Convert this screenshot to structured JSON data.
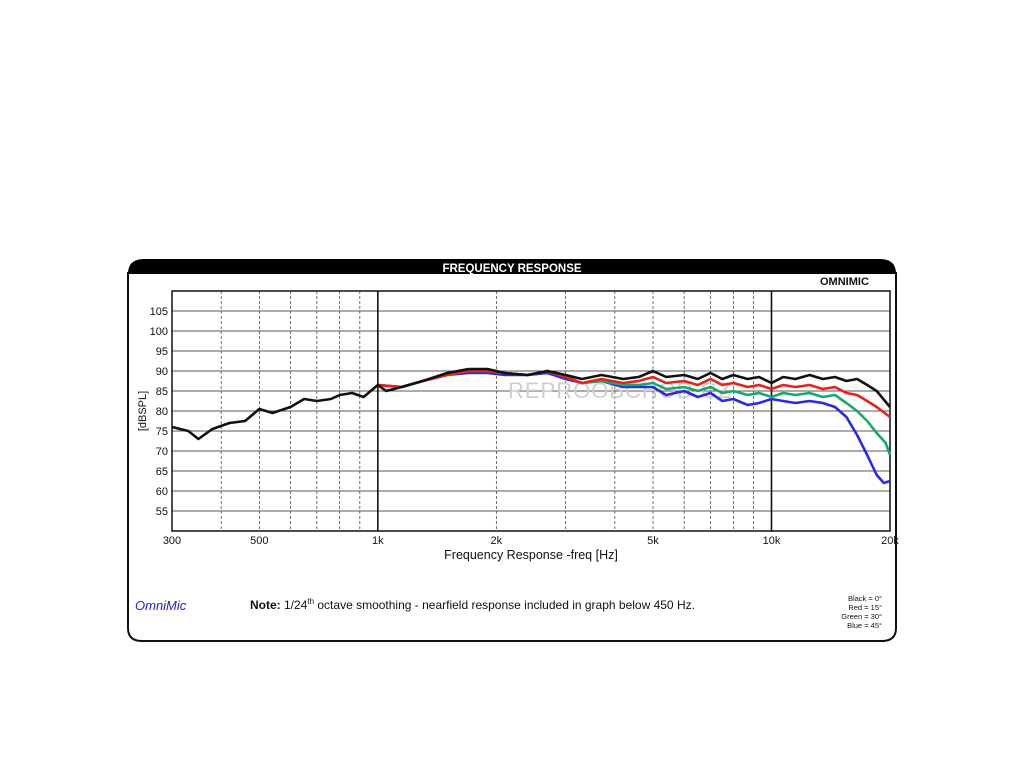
{
  "header": {
    "title": "FREQUENCY RESPONSE",
    "logo": "OMNIMIC"
  },
  "brand": "OmniMic",
  "watermark": "REPROOBCHOD.CZ",
  "note": {
    "bold": "Note:",
    "text_before": " 1/24",
    "superscript": "th",
    "text_after": " octave smoothing - nearfield response included in graph below 450 Hz."
  },
  "legend": [
    "Black = 0°",
    "Red = 15°",
    "Green = 30°",
    "Blue = 45°"
  ],
  "colors": {
    "black": "#111111",
    "red": "#e8211c",
    "green": "#1aa86a",
    "blue": "#2a2ae0",
    "header_bg": "#000000"
  },
  "chart_data": {
    "type": "line",
    "xlabel": "Frequency Response -freq [Hz]",
    "ylabel": "[dBSPL]",
    "xscale": "log",
    "xlim": [
      300,
      20000
    ],
    "ylim": [
      50,
      110
    ],
    "xticks": [
      {
        "value": 300,
        "label": "300"
      },
      {
        "value": 500,
        "label": "500"
      },
      {
        "value": 1000,
        "label": "1k"
      },
      {
        "value": 2000,
        "label": "2k"
      },
      {
        "value": 5000,
        "label": "5k"
      },
      {
        "value": 10000,
        "label": "10k"
      },
      {
        "value": 20000,
        "label": "20k"
      }
    ],
    "yticks": [
      55,
      60,
      65,
      70,
      75,
      80,
      85,
      90,
      95,
      100,
      105
    ],
    "grid": true,
    "series": [
      {
        "name": "Black = 0°",
        "color": "#111111",
        "points": [
          [
            300,
            76
          ],
          [
            330,
            75
          ],
          [
            350,
            73
          ],
          [
            380,
            75.5
          ],
          [
            420,
            77
          ],
          [
            460,
            77.5
          ],
          [
            500,
            80.5
          ],
          [
            540,
            79.5
          ],
          [
            600,
            81
          ],
          [
            650,
            83
          ],
          [
            700,
            82.5
          ],
          [
            760,
            83
          ],
          [
            800,
            84
          ],
          [
            860,
            84.5
          ],
          [
            920,
            83.5
          ],
          [
            1000,
            86.5
          ],
          [
            1050,
            85
          ],
          [
            1150,
            86
          ],
          [
            1300,
            87.5
          ],
          [
            1500,
            89.5
          ],
          [
            1700,
            90.5
          ],
          [
            1900,
            90.5
          ],
          [
            2100,
            89.5
          ],
          [
            2400,
            89
          ],
          [
            2700,
            90
          ],
          [
            3000,
            89
          ],
          [
            3300,
            88
          ],
          [
            3700,
            89
          ],
          [
            4200,
            88
          ],
          [
            4600,
            88.5
          ],
          [
            5000,
            90
          ],
          [
            5400,
            88.5
          ],
          [
            6000,
            89
          ],
          [
            6500,
            88
          ],
          [
            7000,
            89.5
          ],
          [
            7500,
            88
          ],
          [
            8000,
            89
          ],
          [
            8700,
            88
          ],
          [
            9300,
            88.5
          ],
          [
            10000,
            87
          ],
          [
            10700,
            88.5
          ],
          [
            11500,
            88
          ],
          [
            12500,
            89
          ],
          [
            13500,
            88
          ],
          [
            14500,
            88.5
          ],
          [
            15500,
            87.5
          ],
          [
            16500,
            88
          ],
          [
            17500,
            86.5
          ],
          [
            18500,
            85
          ],
          [
            20000,
            81
          ]
        ]
      },
      {
        "name": "Red = 15°",
        "color": "#e8211c",
        "points": [
          [
            1000,
            86.5
          ],
          [
            1150,
            86
          ],
          [
            1300,
            87.5
          ],
          [
            1500,
            89
          ],
          [
            1700,
            90
          ],
          [
            1900,
            90
          ],
          [
            2100,
            89.5
          ],
          [
            2400,
            89
          ],
          [
            2700,
            90
          ],
          [
            3000,
            88.5
          ],
          [
            3300,
            87
          ],
          [
            3700,
            88
          ],
          [
            4200,
            87
          ],
          [
            4600,
            87.5
          ],
          [
            5000,
            88.5
          ],
          [
            5400,
            87
          ],
          [
            6000,
            87.5
          ],
          [
            6500,
            86.5
          ],
          [
            7000,
            88
          ],
          [
            7500,
            86.5
          ],
          [
            8000,
            87
          ],
          [
            8700,
            86
          ],
          [
            9300,
            86.5
          ],
          [
            10000,
            85.5
          ],
          [
            10700,
            86.5
          ],
          [
            11500,
            86
          ],
          [
            12500,
            86.5
          ],
          [
            13500,
            85.5
          ],
          [
            14500,
            86
          ],
          [
            15500,
            84.5
          ],
          [
            16500,
            84
          ],
          [
            17500,
            82.5
          ],
          [
            18500,
            81
          ],
          [
            20000,
            78.5
          ]
        ]
      },
      {
        "name": "Green = 30°",
        "color": "#1aa86a",
        "points": [
          [
            1000,
            86.5
          ],
          [
            1150,
            86
          ],
          [
            1300,
            87.5
          ],
          [
            1500,
            89
          ],
          [
            1700,
            90
          ],
          [
            1900,
            90
          ],
          [
            2100,
            89.5
          ],
          [
            2400,
            89
          ],
          [
            2700,
            90
          ],
          [
            3000,
            88.5
          ],
          [
            3300,
            87
          ],
          [
            3700,
            87.5
          ],
          [
            4200,
            86.5
          ],
          [
            4600,
            86.5
          ],
          [
            5000,
            87
          ],
          [
            5400,
            85.5
          ],
          [
            6000,
            86
          ],
          [
            6500,
            85
          ],
          [
            7000,
            86
          ],
          [
            7500,
            84.5
          ],
          [
            8000,
            85
          ],
          [
            8700,
            84
          ],
          [
            9300,
            84.5
          ],
          [
            10000,
            83.5
          ],
          [
            10700,
            84.5
          ],
          [
            11500,
            84
          ],
          [
            12500,
            84.5
          ],
          [
            13500,
            83.5
          ],
          [
            14500,
            84
          ],
          [
            15500,
            82
          ],
          [
            16500,
            80
          ],
          [
            17500,
            77.5
          ],
          [
            18500,
            74.5
          ],
          [
            19500,
            72
          ],
          [
            20000,
            69
          ]
        ]
      },
      {
        "name": "Blue = 45°",
        "color": "#2a2ae0",
        "points": [
          [
            1000,
            86.5
          ],
          [
            1150,
            86
          ],
          [
            1300,
            87.5
          ],
          [
            1500,
            89
          ],
          [
            1700,
            89.5
          ],
          [
            1900,
            89.5
          ],
          [
            2100,
            89
          ],
          [
            2400,
            89
          ],
          [
            2700,
            89.5
          ],
          [
            3000,
            88
          ],
          [
            3300,
            87
          ],
          [
            3700,
            87.5
          ],
          [
            4200,
            86
          ],
          [
            4600,
            86
          ],
          [
            5000,
            86
          ],
          [
            5400,
            84
          ],
          [
            6000,
            85
          ],
          [
            6500,
            83.5
          ],
          [
            7000,
            84.5
          ],
          [
            7500,
            82.5
          ],
          [
            8000,
            83
          ],
          [
            8700,
            81.5
          ],
          [
            9300,
            82
          ],
          [
            10000,
            83
          ],
          [
            10700,
            82.5
          ],
          [
            11500,
            82
          ],
          [
            12500,
            82.5
          ],
          [
            13500,
            82
          ],
          [
            14500,
            81
          ],
          [
            15500,
            78.5
          ],
          [
            16500,
            74
          ],
          [
            17500,
            69
          ],
          [
            18500,
            64
          ],
          [
            19300,
            62
          ],
          [
            20000,
            62.5
          ]
        ]
      }
    ]
  }
}
